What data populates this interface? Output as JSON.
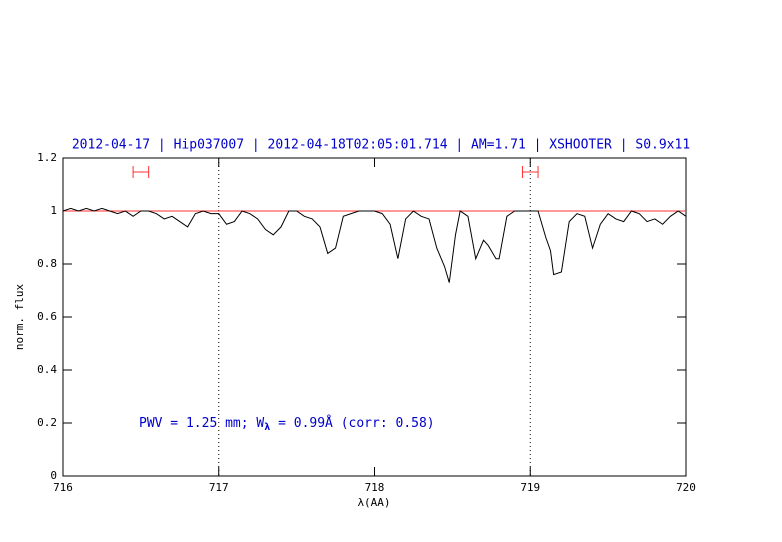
{
  "chart_data": {
    "type": "line",
    "title": "2012-04-17 | Hip037007 | 2012-04-18T02:05:01.714 | AM=1.71 | XSHOOTER | S0.9x11",
    "x_label": "λ(AA)",
    "y_label": "norm. flux",
    "annotation": [
      "PWV = 1.25 mm; W",
      "λ",
      " = 0.99Å (corr: 0.58)"
    ],
    "x": [
      716.0,
      716.05,
      716.1,
      716.15,
      716.2,
      716.25,
      716.3,
      716.35,
      716.4,
      716.45,
      716.5,
      716.55,
      716.6,
      716.65,
      716.7,
      716.75,
      716.8,
      716.85,
      716.9,
      716.95,
      717.0,
      717.05,
      717.1,
      717.15,
      717.2,
      717.25,
      717.3,
      717.35,
      717.4,
      717.45,
      717.5,
      717.55,
      717.6,
      717.65,
      717.7,
      717.75,
      717.8,
      717.85,
      717.9,
      717.95,
      718.0,
      718.05,
      718.1,
      718.15,
      718.2,
      718.25,
      718.3,
      718.35,
      718.4,
      718.45,
      718.48,
      718.52,
      718.55,
      718.6,
      718.65,
      718.7,
      718.73,
      718.78,
      718.8,
      718.85,
      718.9,
      718.95,
      719.0,
      719.05,
      719.1,
      719.13,
      719.15,
      719.2,
      719.25,
      719.3,
      719.35,
      719.4,
      719.45,
      719.5,
      719.55,
      719.6,
      719.65,
      719.7,
      719.75,
      719.8,
      719.85,
      719.9,
      719.95,
      720.0
    ],
    "series": [
      {
        "color": "#000000",
        "values": [
          1.0,
          1.01,
          1.0,
          1.01,
          1.0,
          1.01,
          1.0,
          0.99,
          1.0,
          0.98,
          1.0,
          1.0,
          0.99,
          0.97,
          0.98,
          0.96,
          0.94,
          0.99,
          1.0,
          0.99,
          0.99,
          0.95,
          0.96,
          1.0,
          0.99,
          0.97,
          0.93,
          0.91,
          0.94,
          1.0,
          1.0,
          0.98,
          0.97,
          0.94,
          0.84,
          0.86,
          0.98,
          0.99,
          1.0,
          1.0,
          1.0,
          0.99,
          0.95,
          0.82,
          0.97,
          1.0,
          0.98,
          0.97,
          0.86,
          0.79,
          0.73,
          0.91,
          1.0,
          0.98,
          0.82,
          0.89,
          0.87,
          0.82,
          0.82,
          0.98,
          1.0,
          1.0,
          1.0,
          1.0,
          0.9,
          0.85,
          0.76,
          0.77,
          0.96,
          0.99,
          0.98,
          0.86,
          0.95,
          0.99,
          0.97,
          0.96,
          1.0,
          0.99,
          0.96,
          0.97,
          0.95,
          0.98,
          1.0,
          0.98
        ]
      }
    ],
    "continuum": 1,
    "continuum_color": "#ff3030",
    "vlines": [
      717,
      719
    ],
    "windows": [
      [
        716.45,
        716.55
      ],
      [
        718.95,
        719.05
      ]
    ],
    "window_color": "#ff3030",
    "xlim": [
      716,
      720
    ],
    "xticks": [
      716,
      717,
      718,
      719,
      720
    ],
    "ylim": [
      0,
      1.2
    ],
    "yticks": [
      0,
      0.2,
      0.4,
      0.6,
      0.8,
      1,
      1.2
    ]
  }
}
